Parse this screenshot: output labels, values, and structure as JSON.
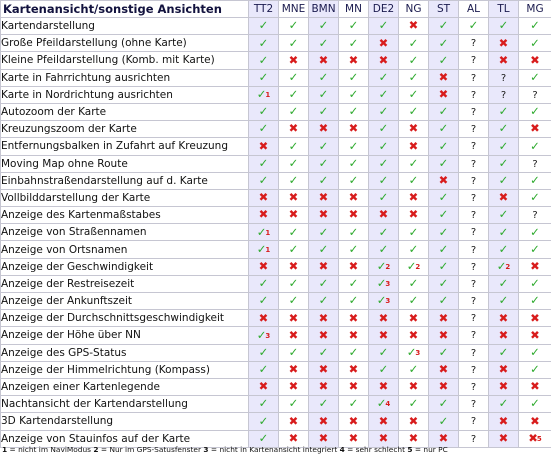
{
  "title": "Kartenansicht/sonstige Ansichten",
  "columns": [
    {
      "label": "TT2",
      "tint": true
    },
    {
      "label": "MNE",
      "tint": false
    },
    {
      "label": "BMN",
      "tint": true
    },
    {
      "label": "MN",
      "tint": false
    },
    {
      "label": "DE2",
      "tint": true
    },
    {
      "label": "NG",
      "tint": false
    },
    {
      "label": "ST",
      "tint": true
    },
    {
      "label": "AL",
      "tint": false
    },
    {
      "label": "TL",
      "tint": true
    },
    {
      "label": "MG",
      "tint": false
    }
  ],
  "symbols": {
    "yes": "✓",
    "no": "✖",
    "unknown": "?"
  },
  "rows": [
    {
      "label": "Kartendarstellung",
      "cells": [
        "y",
        "y",
        "y",
        "y",
        "y",
        "n",
        "y",
        "y",
        "y",
        "y"
      ]
    },
    {
      "label": "Große Pfeildarstellung (ohne Karte)",
      "cells": [
        "y",
        "y",
        "y",
        "y",
        "n",
        "y",
        "y",
        "?",
        "n",
        "y"
      ]
    },
    {
      "label": "Kleine Pfeildarstellung (Komb. mit Karte)",
      "cells": [
        "y",
        "n",
        "n",
        "n",
        "n",
        "y",
        "y",
        "?",
        "n",
        "n"
      ]
    },
    {
      "label": "Karte in Fahrrichtung ausrichten",
      "cells": [
        "y",
        "y",
        "y",
        "y",
        "y",
        "y",
        "n",
        "?",
        "?",
        "y"
      ]
    },
    {
      "label": "Karte in Nordrichtung ausrichten",
      "cells": [
        "y1",
        "y",
        "y",
        "y",
        "y",
        "y",
        "n",
        "?",
        "?",
        "?"
      ]
    },
    {
      "label": "Autozoom der Karte",
      "cells": [
        "y",
        "y",
        "y",
        "y",
        "y",
        "y",
        "y",
        "?",
        "y",
        "y"
      ]
    },
    {
      "label": "Kreuzungszoom der Karte",
      "cells": [
        "y",
        "n",
        "n",
        "n",
        "y",
        "n",
        "y",
        "?",
        "y",
        "n"
      ]
    },
    {
      "label": "Entfernungsbalken in Zufahrt auf Kreuzung",
      "cells": [
        "n",
        "y",
        "y",
        "y",
        "y",
        "n",
        "y",
        "?",
        "y",
        "y"
      ]
    },
    {
      "label": "Moving Map ohne Route",
      "cells": [
        "y",
        "y",
        "y",
        "y",
        "y",
        "y",
        "y",
        "?",
        "y",
        "?"
      ]
    },
    {
      "label": "Einbahnstraßendarstellung auf d. Karte",
      "cells": [
        "y",
        "y",
        "y",
        "y",
        "y",
        "y",
        "n",
        "?",
        "y",
        "y"
      ]
    },
    {
      "label": "Vollbilddarstellung der Karte",
      "cells": [
        "n",
        "n",
        "n",
        "n",
        "y",
        "n",
        "y",
        "?",
        "n",
        "y"
      ]
    },
    {
      "label": "Anzeige des Kartenmaßstabes",
      "cells": [
        "n",
        "n",
        "n",
        "n",
        "n",
        "n",
        "y",
        "?",
        "y",
        "?"
      ]
    },
    {
      "label": "Anzeige von Straßennamen",
      "cells": [
        "y1",
        "y",
        "y",
        "y",
        "y",
        "y",
        "y",
        "?",
        "y",
        "y"
      ]
    },
    {
      "label": "Anzeige von Ortsnamen",
      "cells": [
        "y1",
        "y",
        "y",
        "y",
        "y",
        "y",
        "y",
        "?",
        "y",
        "y"
      ]
    },
    {
      "label": "Anzeige der Geschwindigkeit",
      "cells": [
        "n",
        "n",
        "n",
        "n",
        "y2",
        "y2",
        "y",
        "?",
        "y2",
        "n"
      ]
    },
    {
      "label": "Anzeige der Restreisezeit",
      "cells": [
        "y",
        "y",
        "y",
        "y",
        "y3",
        "y",
        "y",
        "?",
        "y",
        "y"
      ]
    },
    {
      "label": "Anzeige der Ankunftszeit",
      "cells": [
        "y",
        "y",
        "y",
        "y",
        "y3",
        "y",
        "y",
        "?",
        "y",
        "y"
      ]
    },
    {
      "label": "Anzeige der Durchschnittsgeschwindigkeit",
      "cells": [
        "n",
        "n",
        "n",
        "n",
        "n",
        "n",
        "n",
        "?",
        "n",
        "n"
      ]
    },
    {
      "label": "Anzeige der Höhe über NN",
      "cells": [
        "y3",
        "n",
        "n",
        "n",
        "n",
        "n",
        "n",
        "?",
        "n",
        "n"
      ]
    },
    {
      "label": "Anzeige des GPS-Status",
      "cells": [
        "y",
        "y",
        "y",
        "y",
        "y",
        "y3",
        "y",
        "?",
        "y",
        "y"
      ]
    },
    {
      "label": "Anzeige der Himmelrichtung (Kompass)",
      "cells": [
        "y",
        "n",
        "n",
        "n",
        "y",
        "y",
        "n",
        "?",
        "n",
        "y"
      ]
    },
    {
      "label": "Anzeigen einer Kartenlegende",
      "cells": [
        "n",
        "n",
        "n",
        "n",
        "n",
        "n",
        "n",
        "?",
        "n",
        "n"
      ]
    },
    {
      "label": "Nachtansicht der Kartendarstellung",
      "cells": [
        "y",
        "y",
        "y",
        "y",
        "y4",
        "y",
        "y",
        "?",
        "y",
        "y"
      ]
    },
    {
      "label": "3D Kartendarstellung",
      "cells": [
        "y",
        "n",
        "n",
        "n",
        "n",
        "n",
        "y",
        "?",
        "n",
        "n"
      ]
    },
    {
      "label": "Anzeige von Stauinfos auf der Karte",
      "cells": [
        "y",
        "n",
        "n",
        "n",
        "n",
        "n",
        "n",
        "?",
        "n",
        "n5"
      ]
    }
  ],
  "legend": [
    {
      "num": "1",
      "text": "nicht im NaviModus"
    },
    {
      "num": "2",
      "text": "Nur im GPS-Satusfenster"
    },
    {
      "num": "3",
      "text": "nicht in Kartenansicht integriert"
    },
    {
      "num": "4",
      "text": "sehr schlecht"
    },
    {
      "num": "5",
      "text": "nur PC"
    }
  ]
}
